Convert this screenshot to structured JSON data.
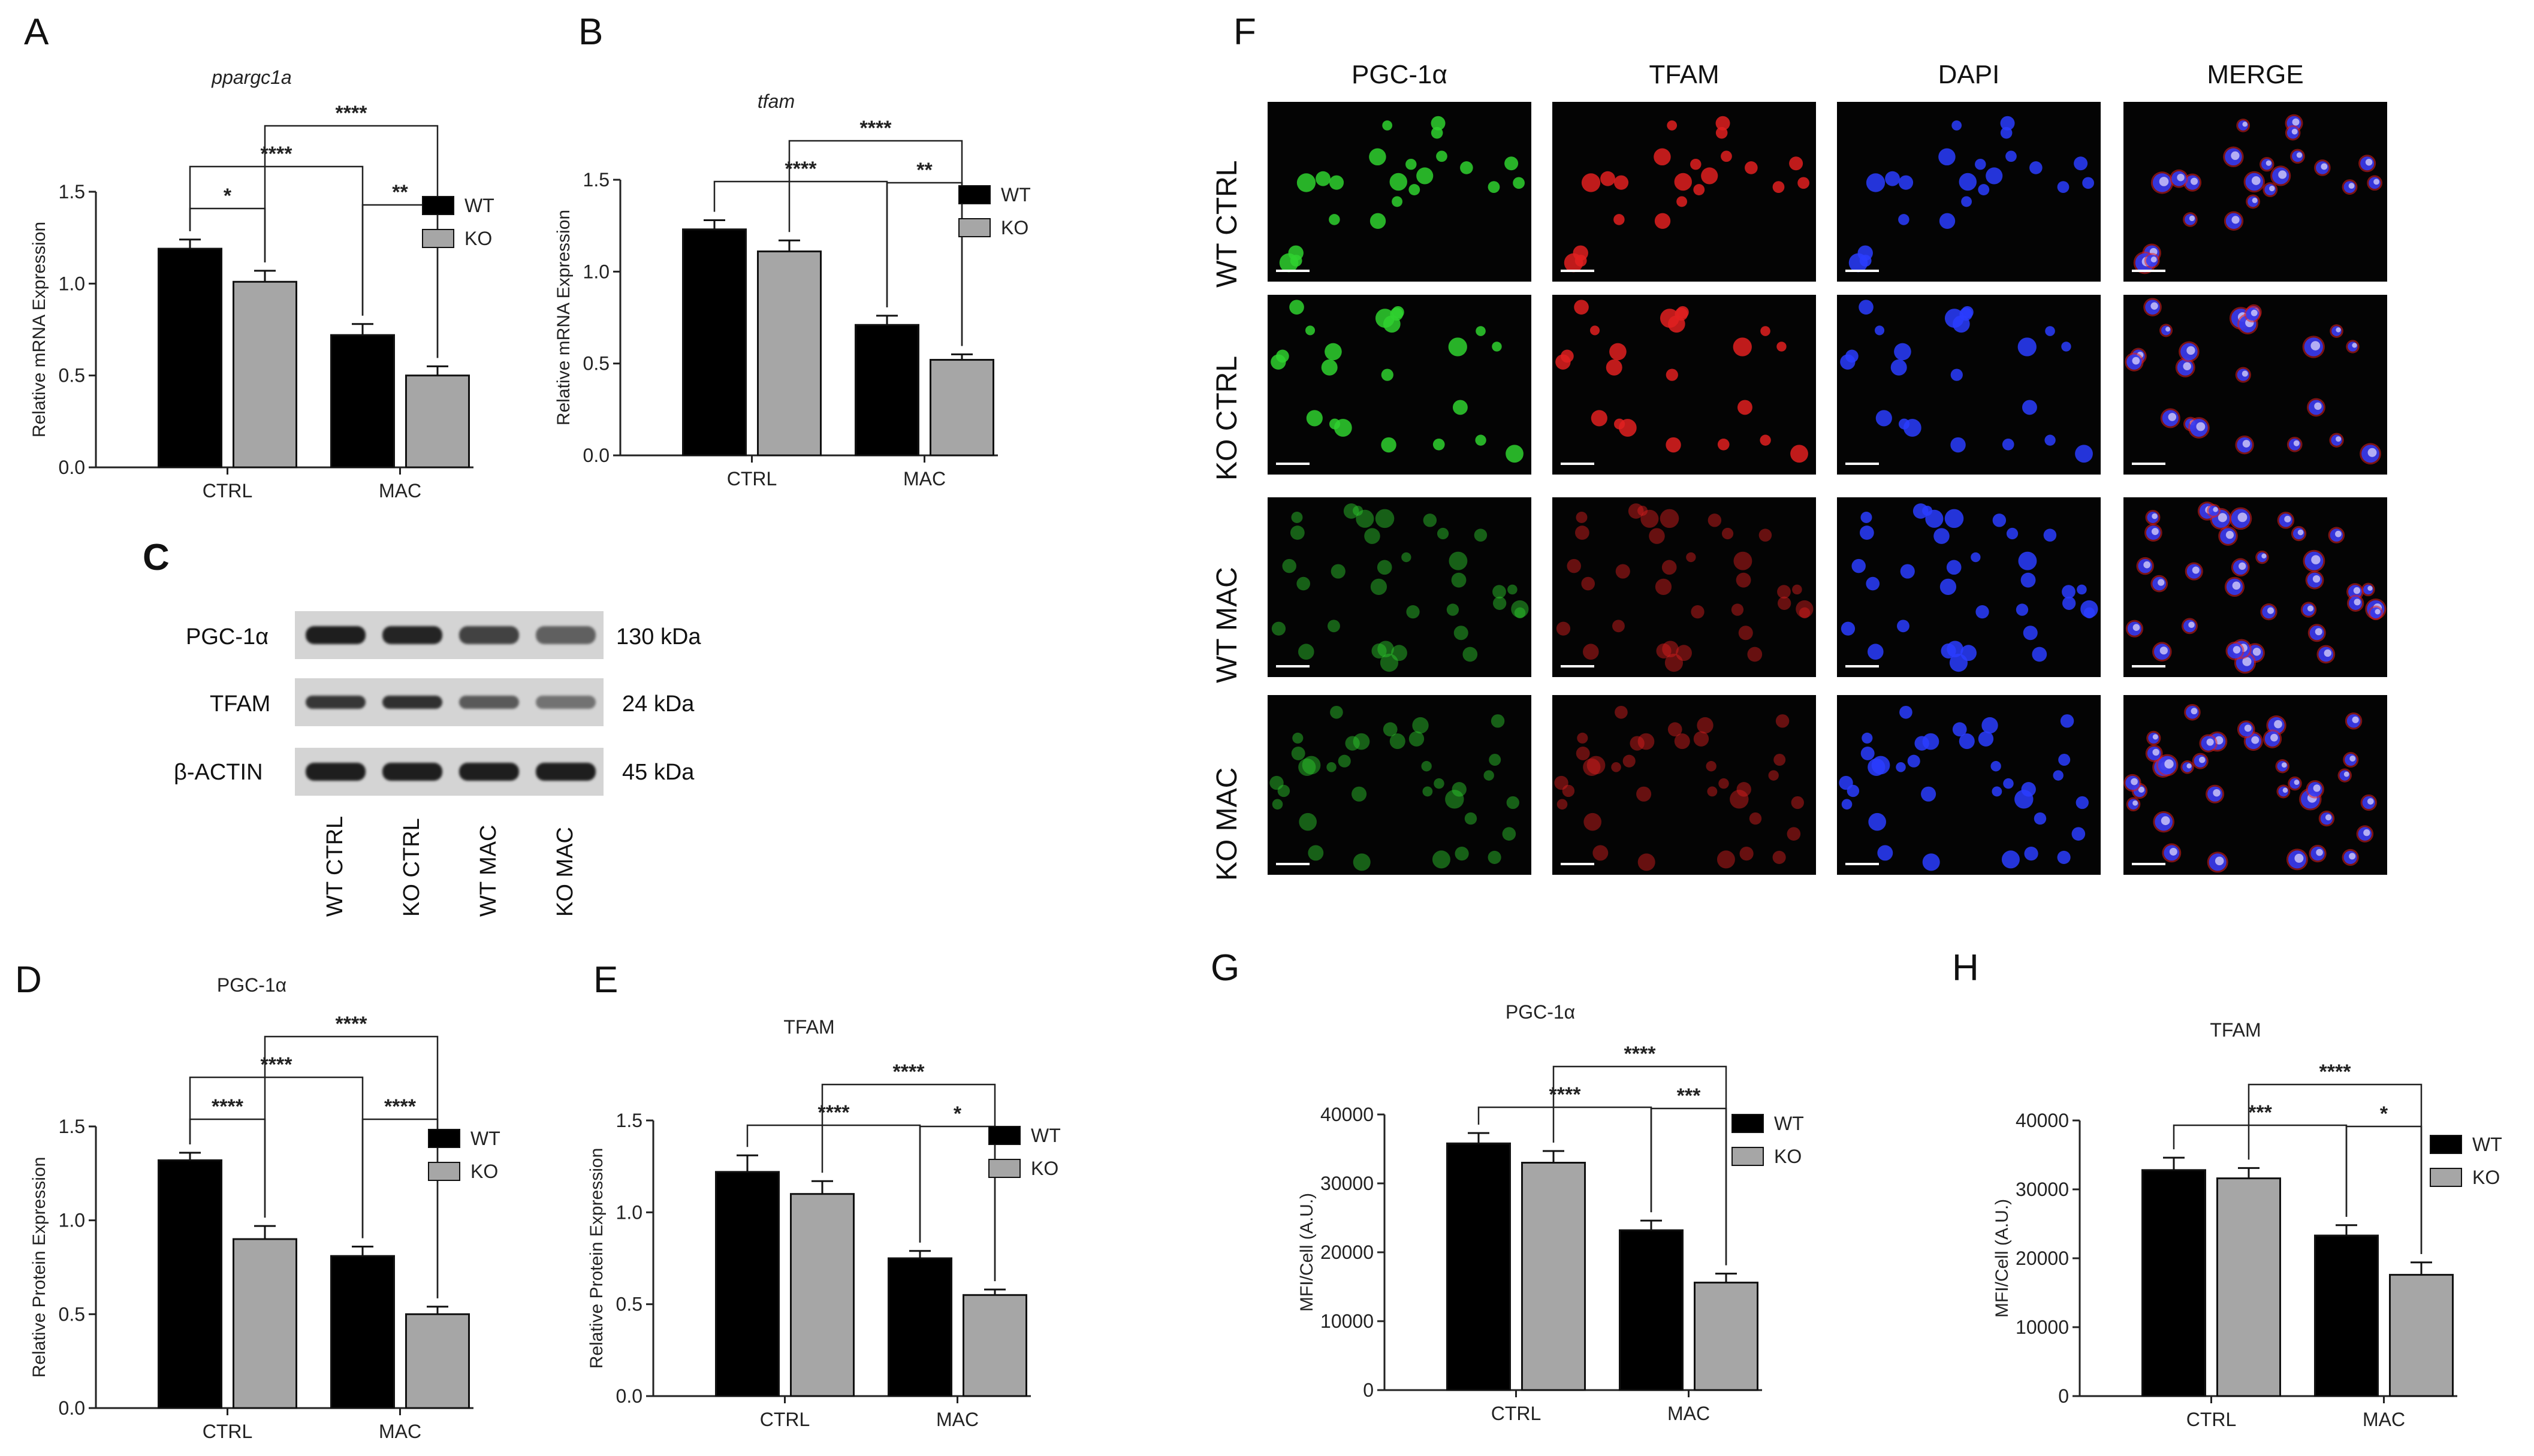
{
  "colors": {
    "wt": "#000000",
    "ko": "#a6a6a6",
    "text": "#111111",
    "green": "#2fd12f",
    "red": "#e02020",
    "blue": "#2a3dff"
  },
  "legend": {
    "wt": "WT",
    "ko": "KO"
  },
  "chart_data": [
    {
      "id": "A",
      "type": "bar",
      "title": "ppargc1a",
      "ylabel": "Relative mRNA Expression",
      "ylim": [
        0,
        1.5
      ],
      "yticks": [
        "0.0",
        "0.5",
        "1.0",
        "1.5"
      ],
      "categories": [
        "CTRL",
        "MAC"
      ],
      "series": [
        {
          "name": "WT",
          "values": [
            1.19,
            0.72
          ],
          "err": [
            0.05,
            0.06
          ]
        },
        {
          "name": "KO",
          "values": [
            1.01,
            0.5
          ],
          "err": [
            0.06,
            0.05
          ]
        }
      ],
      "annotations": [
        "*",
        "**",
        "****",
        "****"
      ]
    },
    {
      "id": "B",
      "type": "bar",
      "title": "tfam",
      "ylabel": "Relative mRNA Expression",
      "ylim": [
        0,
        1.5
      ],
      "yticks": [
        "0.0",
        "0.5",
        "1.0",
        "1.5"
      ],
      "categories": [
        "CTRL",
        "MAC"
      ],
      "series": [
        {
          "name": "WT",
          "values": [
            1.23,
            0.71
          ],
          "err": [
            0.05,
            0.05
          ]
        },
        {
          "name": "KO",
          "values": [
            1.11,
            0.52
          ],
          "err": [
            0.06,
            0.03
          ]
        }
      ],
      "annotations": [
        "**",
        "****",
        "****"
      ]
    },
    {
      "id": "D",
      "type": "bar",
      "title": "PGC-1α",
      "ylabel": "Relative Protein Expression",
      "ylim": [
        0,
        1.5
      ],
      "yticks": [
        "0.0",
        "0.5",
        "1.0",
        "1.5"
      ],
      "categories": [
        "CTRL",
        "MAC"
      ],
      "series": [
        {
          "name": "WT",
          "values": [
            1.32,
            0.81
          ],
          "err": [
            0.04,
            0.05
          ]
        },
        {
          "name": "KO",
          "values": [
            0.9,
            0.5
          ],
          "err": [
            0.07,
            0.04
          ]
        }
      ],
      "annotations": [
        "****",
        "****",
        "****",
        "****"
      ]
    },
    {
      "id": "E",
      "type": "bar",
      "title": "TFAM",
      "ylabel": "Relative Protein Expression",
      "ylim": [
        0,
        1.5
      ],
      "yticks": [
        "0.0",
        "0.5",
        "1.0",
        "1.5"
      ],
      "categories": [
        "CTRL",
        "MAC"
      ],
      "series": [
        {
          "name": "WT",
          "values": [
            1.22,
            0.75
          ],
          "err": [
            0.09,
            0.04
          ]
        },
        {
          "name": "KO",
          "values": [
            1.1,
            0.55
          ],
          "err": [
            0.07,
            0.03
          ]
        }
      ],
      "annotations": [
        "*",
        "****",
        "****"
      ]
    },
    {
      "id": "G",
      "type": "bar",
      "title": "PGC-1α",
      "ylabel": "MFI/Cell (A.U.)",
      "ylim": [
        0,
        40000
      ],
      "yticks": [
        "0",
        "10000",
        "20000",
        "30000",
        "40000"
      ],
      "categories": [
        "CTRL",
        "MAC"
      ],
      "series": [
        {
          "name": "WT",
          "values": [
            35800,
            23200
          ],
          "err": [
            1500,
            1400
          ]
        },
        {
          "name": "KO",
          "values": [
            33000,
            15600
          ],
          "err": [
            1700,
            1300
          ]
        }
      ],
      "annotations": [
        "***",
        "****",
        "****"
      ]
    },
    {
      "id": "H",
      "type": "bar",
      "title": "TFAM",
      "ylabel": "MFI/Cell (A.U.)",
      "ylim": [
        0,
        40000
      ],
      "yticks": [
        "0",
        "10000",
        "20000",
        "30000",
        "40000"
      ],
      "categories": [
        "CTRL",
        "MAC"
      ],
      "series": [
        {
          "name": "WT",
          "values": [
            32800,
            23300
          ],
          "err": [
            1800,
            1500
          ]
        },
        {
          "name": "KO",
          "values": [
            31600,
            17600
          ],
          "err": [
            1500,
            1800
          ]
        }
      ],
      "annotations": [
        "*",
        "***",
        "****"
      ]
    }
  ],
  "panel_letters": {
    "A": "A",
    "B": "B",
    "C": "C",
    "D": "D",
    "E": "E",
    "F": "F",
    "G": "G",
    "H": "H"
  },
  "western": {
    "rows": [
      {
        "label": "PGC-1α",
        "size": "130 kDa"
      },
      {
        "label": "TFAM",
        "size": "24 kDa"
      },
      {
        "label": "β-ACTIN",
        "size": "45 kDa"
      }
    ],
    "lanes": [
      "WT CTRL",
      "KO CTRL",
      "WT MAC",
      "KO MAC"
    ],
    "intensity": [
      [
        1.0,
        0.95,
        0.7,
        0.45
      ],
      [
        0.8,
        0.85,
        0.5,
        0.3
      ],
      [
        1.0,
        1.0,
        1.0,
        1.0
      ]
    ]
  },
  "immuno": {
    "columns": [
      "PGC-1α",
      "TFAM",
      "DAPI",
      "MERGE"
    ],
    "rows": [
      "WT CTRL",
      "KO CTRL",
      "WT MAC",
      "KO MAC"
    ]
  }
}
